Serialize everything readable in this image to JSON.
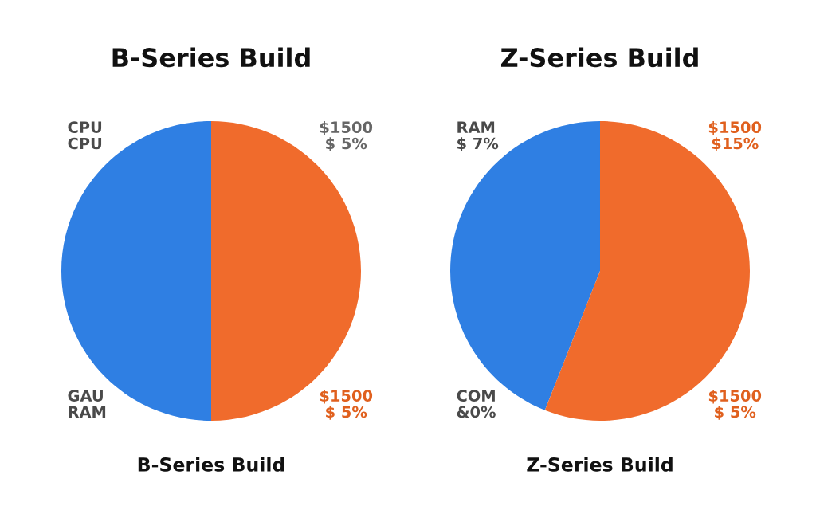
{
  "chart_data": [
    {
      "type": "pie",
      "title": "B-Series Build",
      "subtitle": "B-Series Build",
      "categories": [
        null,
        null
      ],
      "values": [
        50,
        50
      ],
      "colors": [
        "#2f7fe3",
        "#f06b2c"
      ],
      "annotations": [
        "CPU\nCPU",
        "$1500\n$ 5%",
        "GAU\nRAM",
        "$1500\n$ 5%"
      ]
    },
    {
      "type": "pie",
      "title": "Z-Series Build",
      "subtitle": "Z-Series Build",
      "categories": [
        null,
        null
      ],
      "values": [
        44,
        56
      ],
      "colors": [
        "#2f7fe3",
        "#f06b2c"
      ],
      "annotations": [
        "RAM\n$ 7%",
        "$1500\n$15%",
        "COM\n&0%",
        "$1500\n$ 5%"
      ]
    }
  ]
}
